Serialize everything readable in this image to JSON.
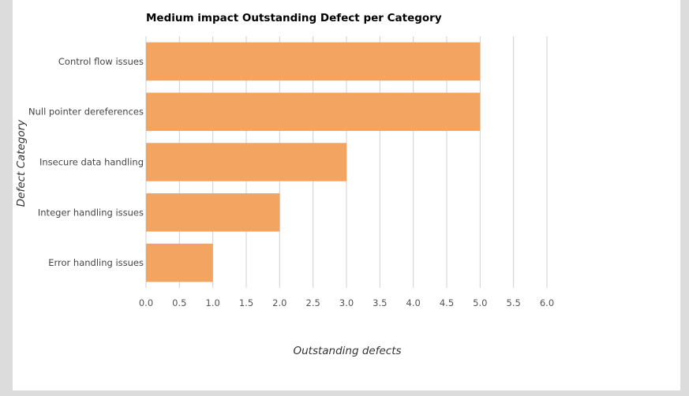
{
  "chart_data": {
    "type": "bar",
    "orientation": "horizontal",
    "title": "Medium impact Outstanding Defect per Category",
    "xlabel": "Outstanding defects",
    "ylabel": "Defect Category",
    "categories": [
      "Control flow issues",
      "Null pointer dereferences",
      "Insecure data handling",
      "Integer handling issues",
      "Error handling issues"
    ],
    "values": [
      5,
      5,
      3,
      2,
      1
    ],
    "xlim": [
      0,
      6
    ],
    "x_ticks": [
      "0.0",
      "0.5",
      "1.0",
      "1.5",
      "2.0",
      "2.5",
      "3.0",
      "3.5",
      "4.0",
      "4.5",
      "5.0",
      "5.5",
      "6.0"
    ],
    "grid": "vertical",
    "legend": "none",
    "bar_color": "#f4a461"
  }
}
